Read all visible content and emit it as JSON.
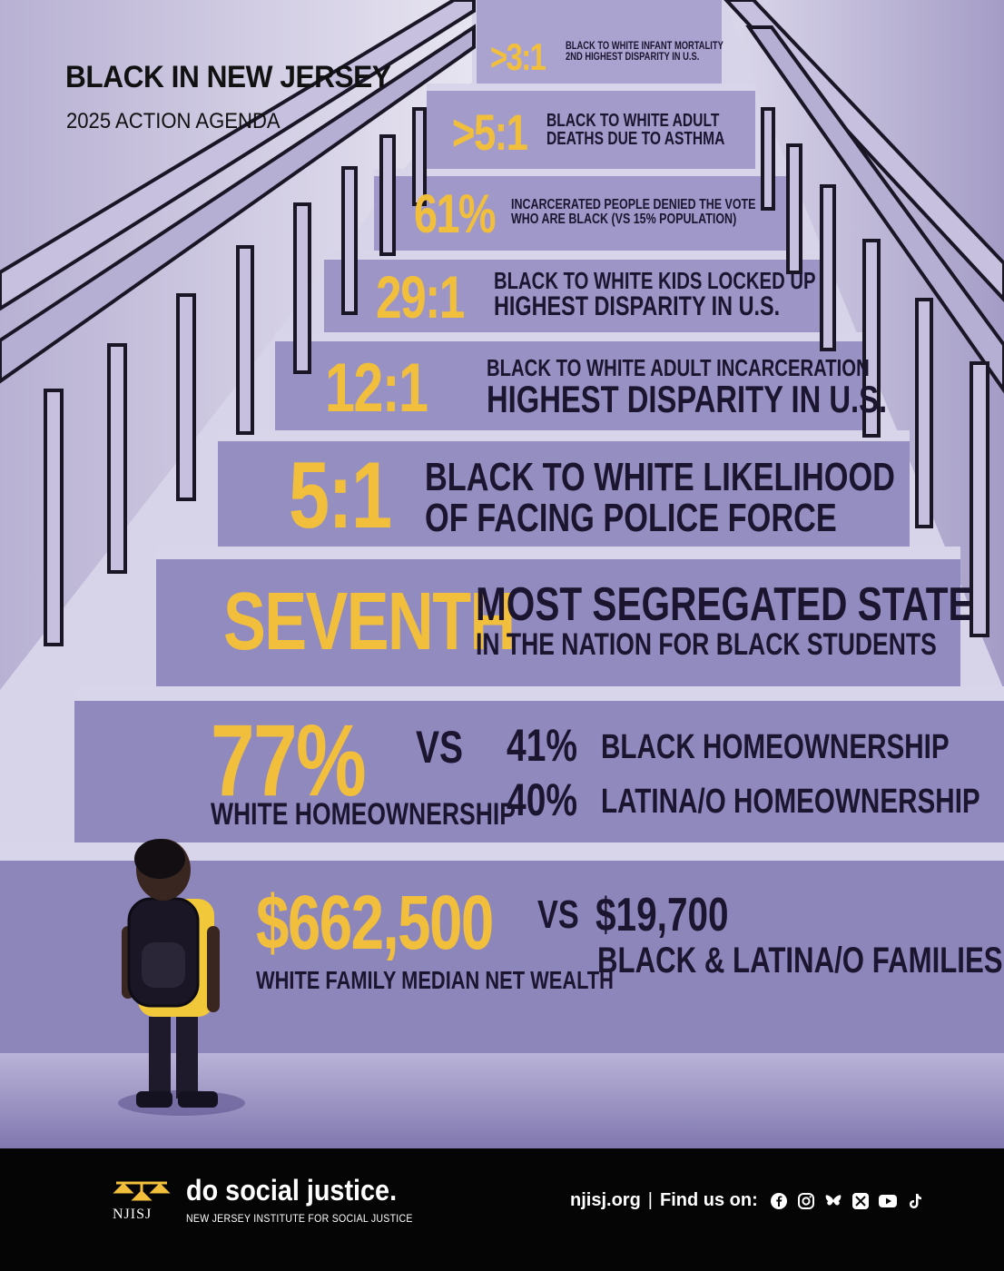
{
  "header": {
    "title": "BLACK IN NEW JERSEY",
    "subtitle": "2025 ACTION AGENDA"
  },
  "steps": [
    {
      "stat": ">3:1",
      "lines": [
        "BLACK TO WHITE INFANT MORTALITY",
        "2ND HIGHEST DISPARITY IN U.S."
      ]
    },
    {
      "stat": ">5:1",
      "lines": [
        "BLACK TO WHITE ADULT",
        "DEATHS DUE TO ASTHMA"
      ]
    },
    {
      "stat": "61%",
      "lines": [
        "INCARCERATED PEOPLE DENIED THE VOTE",
        "WHO ARE BLACK (VS 15% POPULATION)"
      ]
    },
    {
      "stat": "29:1",
      "lines": [
        "BLACK TO WHITE KIDS LOCKED UP",
        "HIGHEST DISPARITY IN U.S."
      ]
    },
    {
      "stat": "12:1",
      "lines": [
        "BLACK TO WHITE ADULT INCARCERATION",
        "HIGHEST DISPARITY IN U.S."
      ]
    },
    {
      "stat": "5:1",
      "lines": [
        "BLACK TO WHITE LIKELIHOOD",
        "OF FACING POLICE FORCE"
      ]
    },
    {
      "stat": "SEVENTH",
      "lines": [
        "MOST SEGREGATED STATE",
        "IN THE NATION FOR BLACK STUDENTS"
      ]
    }
  ],
  "homeownership": {
    "white_value": "77%",
    "white_label": "WHITE HOMEOWNERSHIP",
    "vs": "VS",
    "black_value": "41%",
    "black_label": "BLACK HOMEOWNERSHIP",
    "latino_value": "40%",
    "latino_label": "LATINA/O HOMEOWNERSHIP"
  },
  "wealth": {
    "white_value": "$662,500",
    "white_label": "WHITE FAMILY MEDIAN NET WEALTH",
    "vs": "VS",
    "other_value": "$19,700",
    "other_label": "BLACK & LATINA/O FAMILIES"
  },
  "footer": {
    "logo_abbr": "NJISJ",
    "tagline": "do social justice.",
    "org_name": "NEW JERSEY INSTITUTE FOR SOCIAL JUSTICE",
    "website": "njisj.org",
    "separator": "|",
    "find_us": "Find us on:",
    "social_icons": [
      "facebook-icon",
      "instagram-icon",
      "bluesky-icon",
      "x-icon",
      "youtube-icon",
      "tiktok-icon"
    ]
  },
  "colors": {
    "accent_yellow": "#f2bf3d",
    "step_face": "#9c95c6",
    "text_dark": "#1c1530",
    "footer_bg": "#050505"
  }
}
